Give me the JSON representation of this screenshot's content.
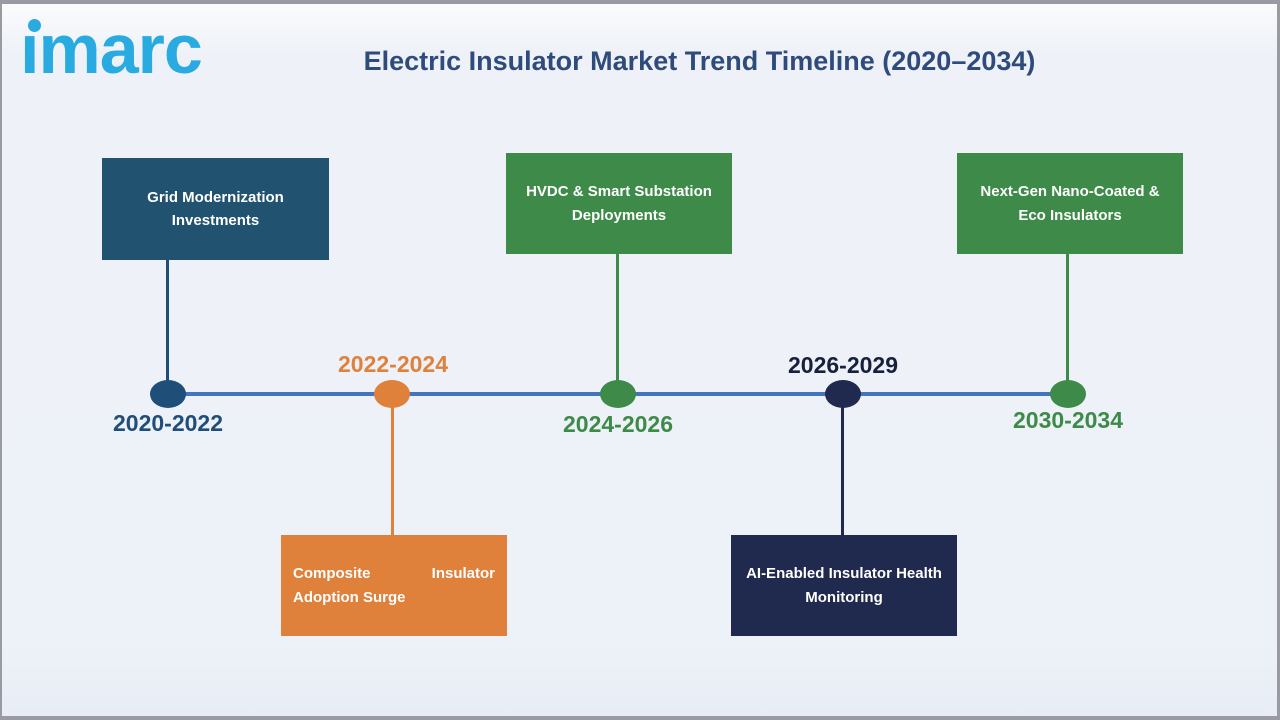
{
  "palette": {
    "logo-blue": "#29ABE2",
    "title-navy": "#2F4B7C",
    "steel-blue": "#215270",
    "node-blue": "#1F4E79",
    "orange": "#E0813B",
    "green": "#3E8A49",
    "navy": "#1F2A4E",
    "navy-text": "#17203C",
    "line-blue": "#4474BE",
    "frame-grey": "#9A9AA2",
    "box-text": "#FFFFFF"
  },
  "header": {
    "logo_text": "imarc",
    "title": "Electric Insulator Market Trend Timeline (2020–2034)"
  },
  "timeline": {
    "events": [
      {
        "period": "2020-2022",
        "label": "Grid Modernization Investments",
        "color": "#215270",
        "box_position": "above"
      },
      {
        "period": "2022-2024",
        "label": "Composite Insulator Adoption Surge",
        "color": "#E0813B",
        "box_position": "below"
      },
      {
        "period": "2024-2026",
        "label": "HVDC & Smart Substation Deployments",
        "color": "#3E8A49",
        "box_position": "above"
      },
      {
        "period": "2026-2029",
        "label": "AI-Enabled Insulator Health Monitoring",
        "color": "#1F2A4E",
        "box_position": "below"
      },
      {
        "period": "2030-2034",
        "label": "Next-Gen Nano-Coated & Eco Insulators",
        "color": "#3E8A49",
        "box_position": "above"
      }
    ]
  }
}
